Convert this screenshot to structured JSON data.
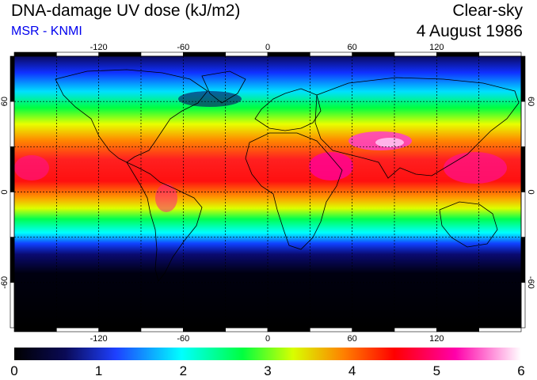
{
  "header": {
    "title": "DNA-damage UV dose (kJ/m2)",
    "subtitle": "MSR - KNMI",
    "sky": "Clear-sky",
    "date": "4 August 1986"
  },
  "map": {
    "lon_ticks": [
      "-120",
      "-60",
      "0",
      "60",
      "120"
    ],
    "lat_ticks": [
      "60",
      "0",
      "-60"
    ],
    "grid_lon_step_deg": 30,
    "grid_lat_step_deg": 30
  },
  "colorbar": {
    "min": 0,
    "max": 6,
    "tick_labels": [
      "0",
      "1",
      "2",
      "3",
      "4",
      "5",
      "6"
    ],
    "colors": [
      "#000000",
      "#0a0a55",
      "#1e40ff",
      "#00ffff",
      "#00ff40",
      "#d8ff00",
      "#ff8000",
      "#ff0000",
      "#ff00aa",
      "#ffffff"
    ]
  }
}
